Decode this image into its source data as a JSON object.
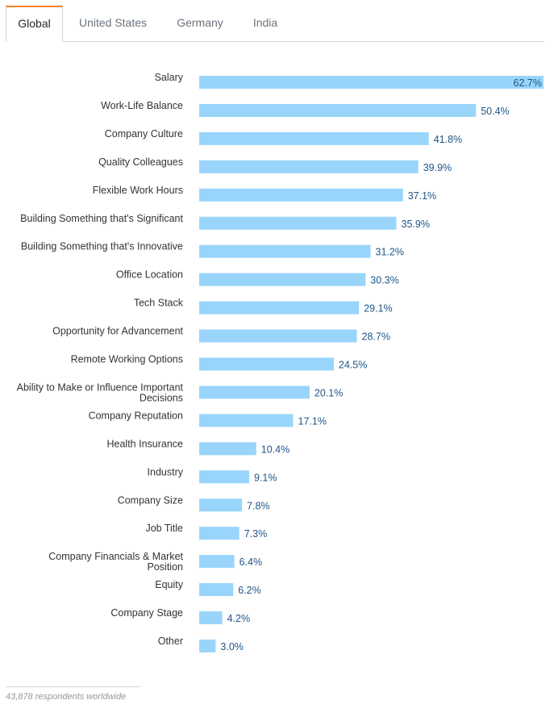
{
  "tabs": [
    {
      "label": "Global",
      "active": true
    },
    {
      "label": "United States",
      "active": false
    },
    {
      "label": "Germany",
      "active": false
    },
    {
      "label": "India",
      "active": false
    }
  ],
  "footer": {
    "text": "43,878 respondents worldwide"
  },
  "colors": {
    "bar": "#99d5fb",
    "value_text": "#1f5488",
    "active_tab_accent": "#f48024"
  },
  "chart_data": {
    "type": "bar",
    "orientation": "horizontal",
    "categories": [
      "Salary",
      "Work-Life Balance",
      "Company Culture",
      "Quality Colleagues",
      "Flexible Work Hours",
      "Building Something that's Significant",
      "Building Something that's Innovative",
      "Office Location",
      "Tech Stack",
      "Opportunity for Advancement",
      "Remote Working Options",
      "Ability to Make or Influence Important Decisions",
      "Company Reputation",
      "Health Insurance",
      "Industry",
      "Company Size",
      "Job Title",
      "Company Financials & Market Position",
      "Equity",
      "Company Stage",
      "Other"
    ],
    "category_lines": [
      [
        "Salary"
      ],
      [
        "Work-Life Balance"
      ],
      [
        "Company Culture"
      ],
      [
        "Quality Colleagues"
      ],
      [
        "Flexible Work Hours"
      ],
      [
        "Building Something that's Significant"
      ],
      [
        "Building Something that's Innovative"
      ],
      [
        "Office Location"
      ],
      [
        "Tech Stack"
      ],
      [
        "Opportunity for Advancement"
      ],
      [
        "Remote Working Options"
      ],
      [
        "Ability to Make or Influence Important",
        "Decisions"
      ],
      [
        "Company Reputation"
      ],
      [
        "Health Insurance"
      ],
      [
        "Industry"
      ],
      [
        "Company Size"
      ],
      [
        "Job Title"
      ],
      [
        "Company Financials & Market",
        "Position"
      ],
      [
        "Equity"
      ],
      [
        "Company Stage"
      ],
      [
        "Other"
      ]
    ],
    "values": [
      62.7,
      50.4,
      41.8,
      39.9,
      37.1,
      35.9,
      31.2,
      30.3,
      29.1,
      28.7,
      24.5,
      20.1,
      17.1,
      10.4,
      9.1,
      7.8,
      7.3,
      6.4,
      6.2,
      4.2,
      3.0
    ],
    "value_labels": [
      "62.7%",
      "50.4%",
      "41.8%",
      "39.9%",
      "37.1%",
      "35.9%",
      "31.2%",
      "30.3%",
      "29.1%",
      "28.7%",
      "24.5%",
      "20.1%",
      "17.1%",
      "10.4%",
      "9.1%",
      "7.8%",
      "7.3%",
      "6.4%",
      "6.2%",
      "4.2%",
      "3.0%"
    ],
    "xlim": [
      0,
      62.7
    ],
    "grid": false,
    "title": "",
    "xlabel": "",
    "ylabel": ""
  }
}
